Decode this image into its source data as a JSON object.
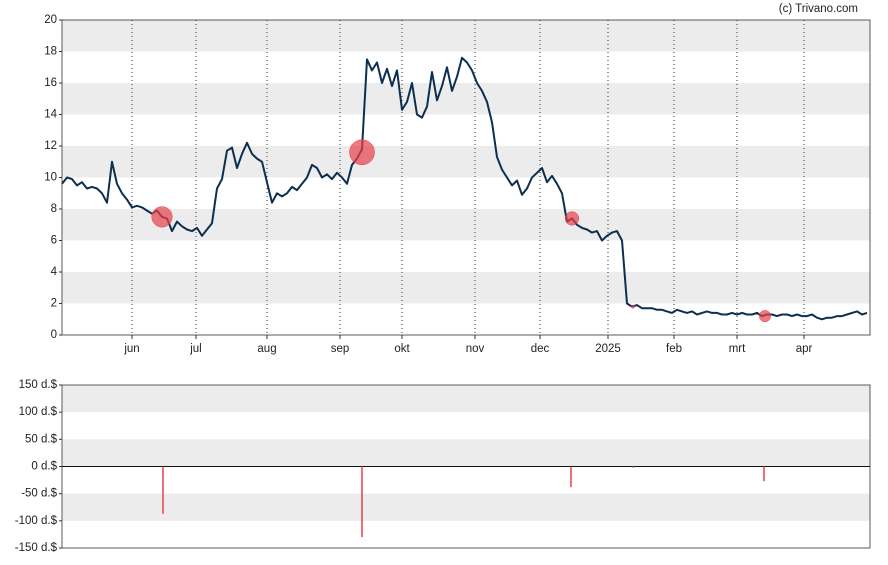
{
  "credit": "(c) Trivano.com",
  "chart_data": [
    {
      "type": "line",
      "color": "#0d2f4f",
      "marker_color": "#e8404a",
      "xlim": [
        0,
        161.6
      ],
      "xticks": [
        {
          "value": 14,
          "label": "jun"
        },
        {
          "value": 26.8,
          "label": "jul"
        },
        {
          "value": 41,
          "label": "aug"
        },
        {
          "value": 55.6,
          "label": "sep"
        },
        {
          "value": 68,
          "label": "okt"
        },
        {
          "value": 82.6,
          "label": "nov"
        },
        {
          "value": 95.6,
          "label": "dec"
        },
        {
          "value": 109.2,
          "label": "2025"
        },
        {
          "value": 122.4,
          "label": "feb"
        },
        {
          "value": 135,
          "label": "mrt"
        },
        {
          "value": 148.4,
          "label": "apr"
        }
      ],
      "ylim": [
        0,
        20
      ],
      "yticks": [
        0,
        2,
        4,
        6,
        8,
        10,
        12,
        14,
        16,
        18,
        20
      ],
      "values": [
        9.6,
        10.0,
        9.9,
        9.5,
        9.7,
        9.3,
        9.4,
        9.3,
        9.0,
        8.4,
        11.0,
        9.6,
        9.0,
        8.6,
        8.1,
        8.2,
        8.1,
        7.9,
        7.7,
        7.9,
        7.5,
        7.4,
        6.6,
        7.2,
        6.9,
        6.7,
        6.6,
        6.8,
        6.3,
        6.7,
        7.1,
        9.3,
        9.9,
        11.7,
        11.9,
        10.6,
        11.5,
        12.2,
        11.5,
        11.2,
        11.0,
        9.7,
        8.4,
        9.0,
        8.8,
        9.0,
        9.4,
        9.2,
        9.6,
        10.0,
        10.8,
        10.6,
        10.0,
        10.2,
        9.9,
        10.3,
        10.0,
        9.6,
        10.8,
        11.2,
        11.8,
        17.5,
        16.8,
        17.3,
        16.0,
        16.9,
        15.8,
        16.8,
        14.3,
        14.8,
        16.0,
        14.0,
        13.8,
        14.5,
        16.7,
        14.9,
        15.8,
        17.0,
        15.5,
        16.4,
        17.6,
        17.3,
        16.8,
        16.0,
        15.5,
        14.8,
        13.5,
        11.3,
        10.5,
        10.0,
        9.5,
        9.8,
        8.9,
        9.3,
        10.0,
        10.3,
        10.6,
        9.7,
        10.1,
        9.6,
        9.0,
        7.2,
        7.4,
        7.0,
        6.8,
        6.7,
        6.5,
        6.6,
        6.0,
        6.3,
        6.5,
        6.6,
        6.0,
        2.0,
        1.8,
        1.9,
        1.7,
        1.7,
        1.7,
        1.6,
        1.6,
        1.5,
        1.4,
        1.6,
        1.5,
        1.4,
        1.5,
        1.3,
        1.4,
        1.5,
        1.4,
        1.4,
        1.3,
        1.3,
        1.4,
        1.3,
        1.4,
        1.3,
        1.3,
        1.4,
        1.2,
        1.3,
        1.3,
        1.2,
        1.3,
        1.3,
        1.2,
        1.3,
        1.2,
        1.2,
        1.3,
        1.1,
        1.0,
        1.1,
        1.1,
        1.2,
        1.2,
        1.3,
        1.4,
        1.5,
        1.3,
        1.4
      ],
      "marker_x": [
        20,
        60,
        102,
        114.2,
        140.6
      ],
      "marker_y": [
        7.5,
        11.6,
        7.4,
        1.8,
        1.2
      ]
    },
    {
      "type": "bar",
      "color": "#e8404a",
      "xlim": [
        0,
        161.6
      ],
      "x": [
        20.2,
        60,
        101.8,
        114.2,
        140.4
      ],
      "values": [
        -87,
        -130,
        -38,
        -2,
        -27
      ],
      "ylim": [
        -150,
        150
      ],
      "yticks": [
        {
          "value": -150,
          "label": "-150 d.$"
        },
        {
          "value": -100,
          "label": "-100 d.$"
        },
        {
          "value": -50,
          "label": "-50 d.$"
        },
        {
          "value": 0,
          "label": "0 d.$"
        },
        {
          "value": 50,
          "label": "50 d.$"
        },
        {
          "value": 100,
          "label": "100 d.$"
        },
        {
          "value": 150,
          "label": "150 d.$"
        }
      ]
    }
  ]
}
